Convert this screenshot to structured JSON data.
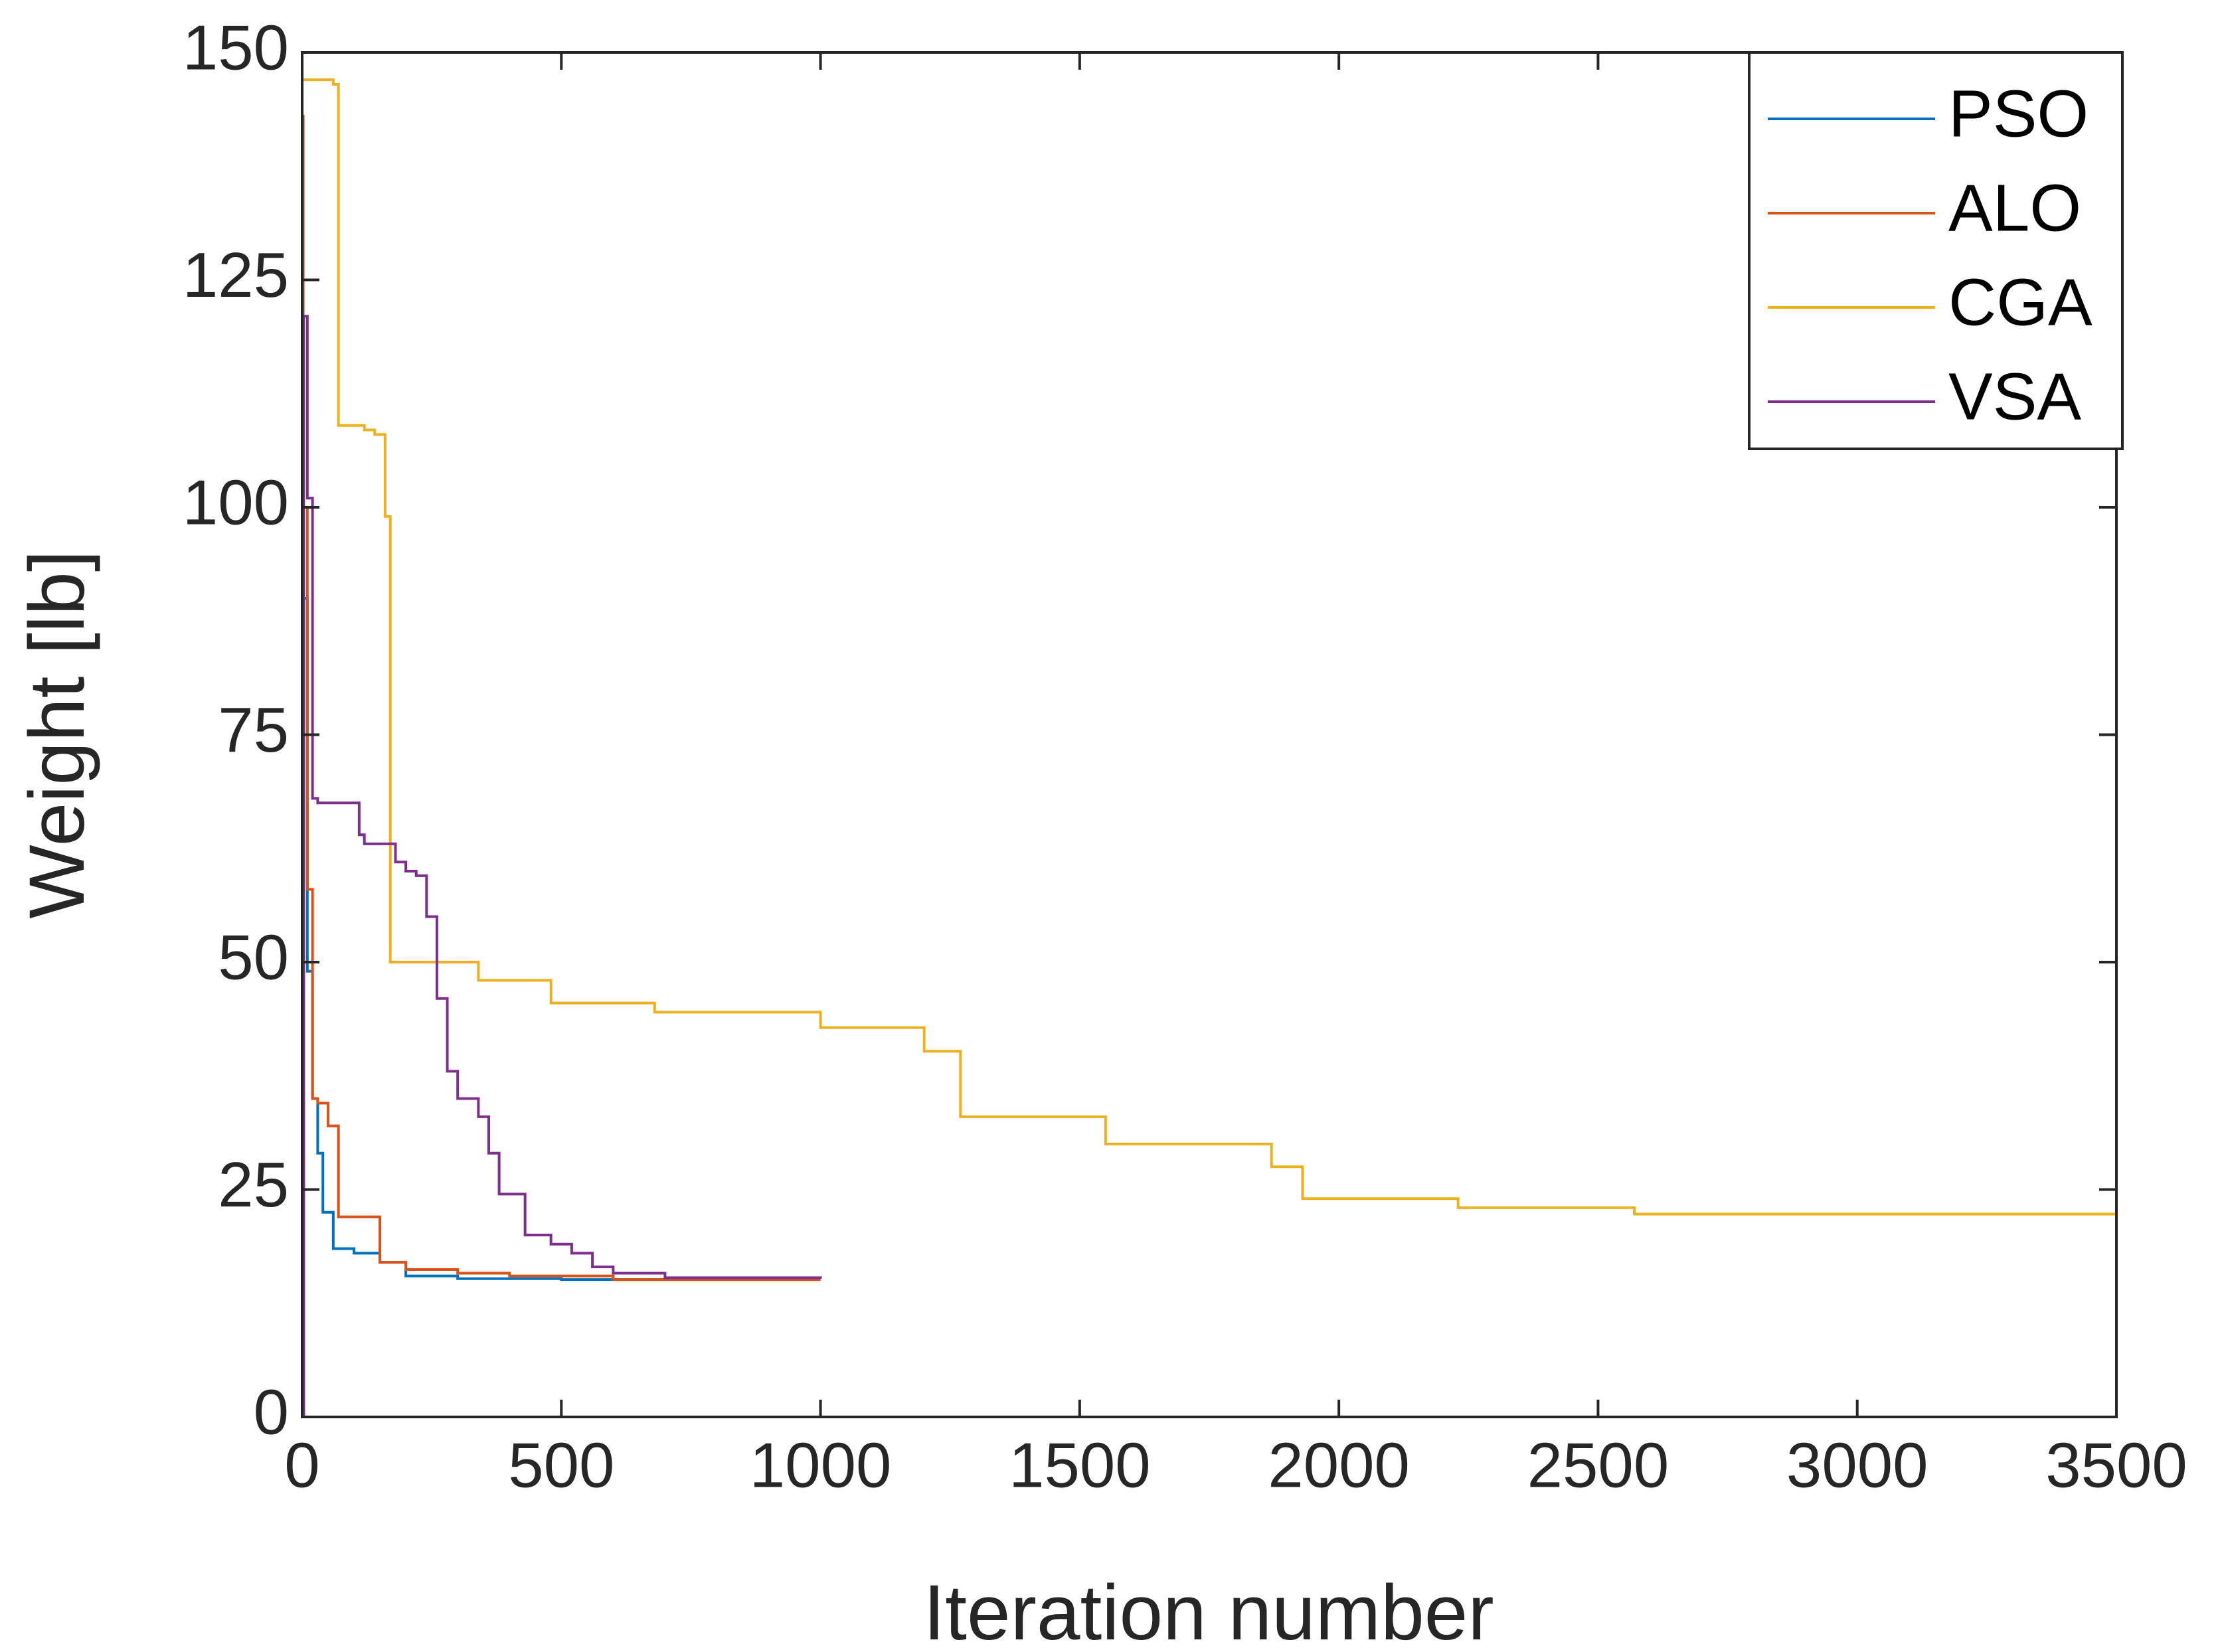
{
  "chart_data": {
    "type": "line",
    "drawstyle": "steps-post",
    "xlabel": "Iteration number",
    "ylabel": "Weight [lb]",
    "xlim": [
      0,
      3500
    ],
    "xticks": [
      0,
      500,
      1000,
      1500,
      2000,
      2500,
      3000,
      3500
    ],
    "ylim": [
      0,
      150
    ],
    "yticks": [
      0,
      25,
      50,
      75,
      100,
      125,
      150
    ],
    "legend": "upper right",
    "grid": false,
    "series": [
      {
        "name": "PSO",
        "color": "#0072bd",
        "x": [
          0,
          3,
          10,
          20,
          30,
          40,
          60,
          100,
          150,
          200,
          300,
          500,
          1000
        ],
        "values": [
          0,
          90,
          49,
          35,
          29,
          22.5,
          18.5,
          18,
          17,
          15.5,
          15.2,
          15.1,
          15.1
        ]
      },
      {
        "name": "ALO",
        "color": "#d95319",
        "x": [
          0,
          2,
          10,
          20,
          30,
          50,
          70,
          100,
          150,
          200,
          300,
          400,
          600,
          1000
        ],
        "values": [
          143,
          100,
          58,
          35,
          34.5,
          32,
          22,
          22,
          17,
          16.2,
          15.8,
          15.5,
          15.1,
          15.1
        ]
      },
      {
        "name": "CGA",
        "color": "#edb120",
        "x": [
          0,
          60,
          70,
          120,
          140,
          160,
          170,
          300,
          340,
          480,
          680,
          1000,
          1200,
          1270,
          1550,
          1870,
          1930,
          2230,
          2570,
          3500
        ],
        "values": [
          147,
          146.5,
          109,
          108.5,
          108,
          99,
          50,
          50,
          48,
          45.5,
          44.5,
          42.8,
          40.2,
          33,
          30,
          27.5,
          24,
          23,
          22.3,
          22.3
        ]
      },
      {
        "name": "VSA",
        "color": "#7e2f8e",
        "x": [
          0,
          3,
          10,
          20,
          30,
          100,
          110,
          120,
          180,
          200,
          220,
          240,
          260,
          280,
          300,
          340,
          360,
          380,
          430,
          480,
          520,
          560,
          600,
          700,
          1000
        ],
        "values": [
          0,
          121,
          101,
          68,
          67.5,
          67.5,
          64,
          63,
          61,
          60,
          59.5,
          55,
          46,
          38,
          35,
          33,
          29,
          24.5,
          20,
          19,
          18,
          16.5,
          15.8,
          15.3,
          15.2
        ]
      }
    ]
  }
}
